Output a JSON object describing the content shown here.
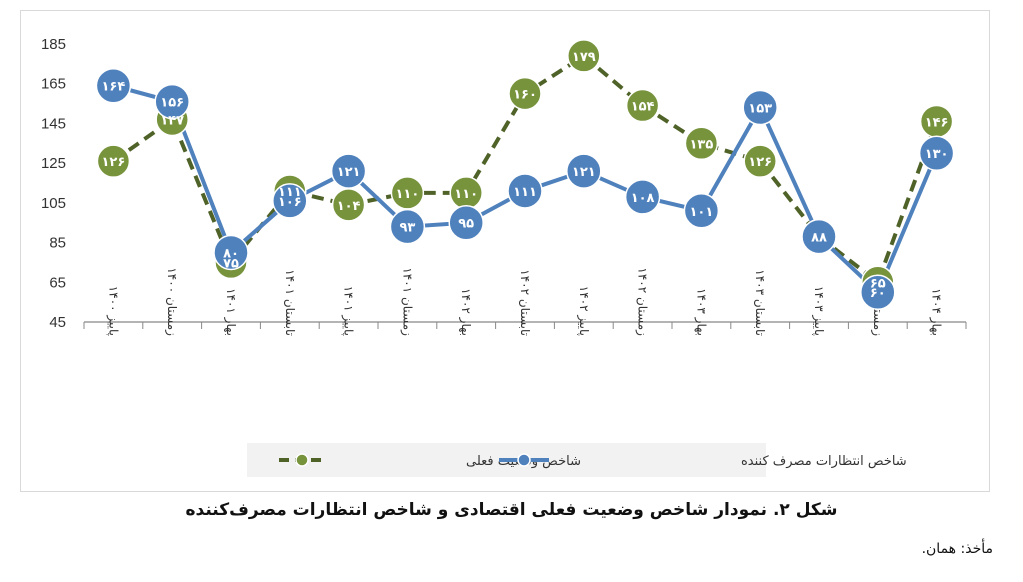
{
  "chart_data": {
    "type": "line",
    "categories": [
      "پاییز ۱۴۰۰",
      "زمستان ۱۴۰۰",
      "بهار ۱۴۰۱",
      "تابستان ۱۴۰۱",
      "پاییز ۱۴۰۱",
      "زمستان ۱۴۰۱",
      "بهار ۱۴۰۲",
      "تابستان ۱۴۰۲",
      "پاییز ۱۴۰۲",
      "زمستان ۱۴۰۲",
      "بهار ۱۴۰۳",
      "تابستان ۱۴۰۳",
      "پاییز ۱۴۰۳",
      "زمستان ۱۴۰۳",
      "بهار ۱۴۰۴"
    ],
    "series": [
      {
        "name": "شاخص وضعیت فعلی",
        "values": [
          126,
          147,
          75,
          111,
          104,
          110,
          110,
          160,
          179,
          154,
          135,
          126,
          88,
          65,
          146
        ],
        "labels": [
          "۱۲۶",
          "۱۴۷",
          "۷۵",
          "۱۱۱",
          "۱۰۴",
          "۱۱۰",
          "۱۱۰",
          "۱۶۰",
          "۱۷۹",
          "۱۵۴",
          "۱۳۵",
          "۱۲۶",
          "",
          "۶۵",
          "۱۴۶"
        ],
        "color": "#77933c",
        "line_style": "dashed"
      },
      {
        "name": "شاخص انتظارات مصرف کننده",
        "values": [
          164,
          156,
          80,
          106,
          121,
          93,
          95,
          111,
          121,
          108,
          101,
          153,
          88,
          60,
          130
        ],
        "labels": [
          "۱۶۴",
          "۱۵۶",
          "۸۰",
          "۱۰۶",
          "۱۲۱",
          "۹۳",
          "۹۵",
          "۱۱۱",
          "۱۲۱",
          "۱۰۸",
          "۱۰۱",
          "۱۵۳",
          "۸۸",
          "۶۰",
          "۱۳۰"
        ],
        "color": "#4f81bd",
        "line_style": "solid"
      }
    ],
    "yticks": [
      "45",
      "65",
      "85",
      "105",
      "125",
      "145",
      "165",
      "185"
    ],
    "ylim": [
      45,
      185
    ],
    "grid": false,
    "legend_position": "bottom"
  },
  "caption": "شکل ۲. نمودار شاخص وضعیت فعلی اقتصادی و شاخص انتظارات مصرف‌کننده",
  "source": "مأخذ: همان."
}
